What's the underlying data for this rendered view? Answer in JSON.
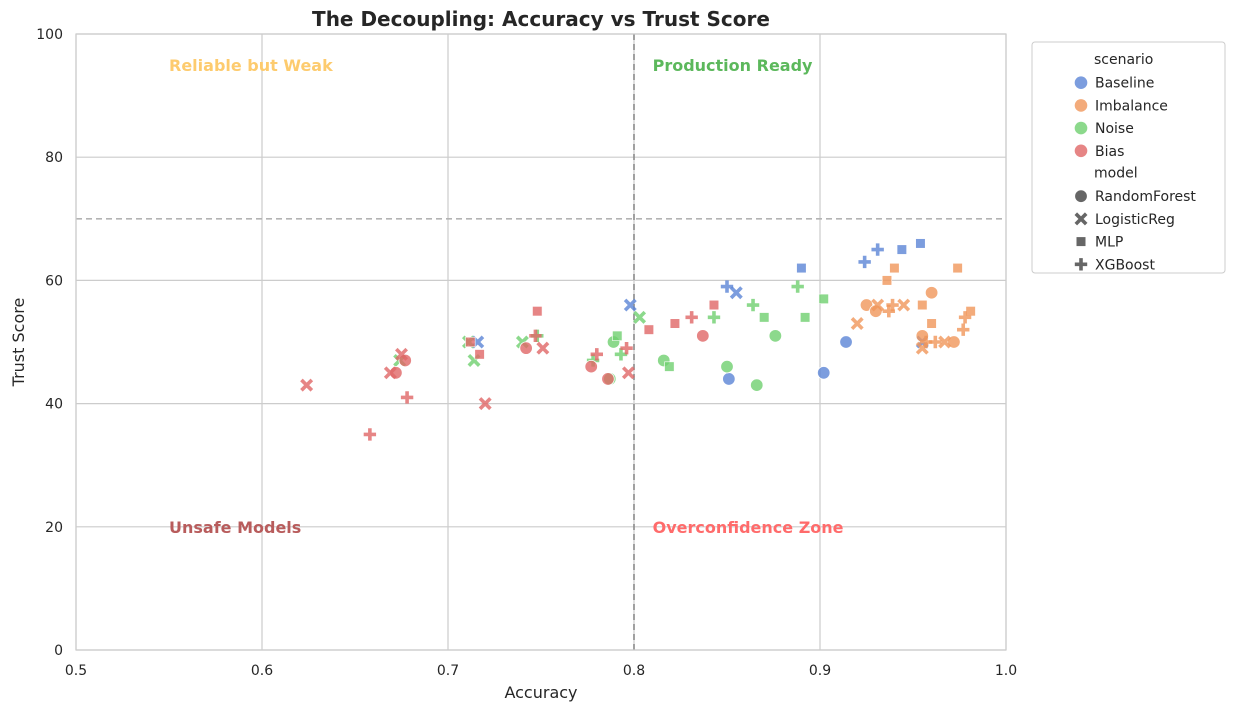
{
  "chart_data": {
    "type": "scatter",
    "title": "The Decoupling: Accuracy vs Trust Score",
    "xlabel": "Accuracy",
    "ylabel": "Trust Score",
    "xlim": [
      0.5,
      1.0
    ],
    "ylim": [
      0,
      100
    ],
    "x_ticks": [
      "0.5",
      "0.6",
      "0.7",
      "0.8",
      "0.9",
      "1.0"
    ],
    "y_ticks": [
      "0",
      "20",
      "40",
      "60",
      "80",
      "100"
    ],
    "grid": true,
    "reference_lines": {
      "vertical_x": 0.8,
      "horizontal_y": 70,
      "style": "dashed"
    },
    "zone_labels": [
      {
        "text": "Reliable but Weak",
        "x": 0.55,
        "y": 95,
        "color": "#fdcb6e"
      },
      {
        "text": "Production Ready",
        "x": 0.81,
        "y": 95,
        "color": "#5cb85c"
      },
      {
        "text": "Unsafe Models",
        "x": 0.55,
        "y": 20,
        "color": "#b85c5c"
      },
      {
        "text": "Overconfidence Zone",
        "x": 0.81,
        "y": 20,
        "color": "#ff6b6b"
      }
    ],
    "legend": {
      "placement": "outside-upper-right",
      "hue_title": "scenario",
      "hue_entries": [
        {
          "name": "Baseline",
          "color": "#5b84d6"
        },
        {
          "name": "Imbalance",
          "color": "#f0965a"
        },
        {
          "name": "Noise",
          "color": "#6fcf6f"
        },
        {
          "name": "Bias",
          "color": "#e06666"
        }
      ],
      "style_title": "model",
      "style_entries": [
        {
          "name": "RandomForest",
          "marker": "circle"
        },
        {
          "name": "LogisticReg",
          "marker": "x"
        },
        {
          "name": "MLP",
          "marker": "square"
        },
        {
          "name": "XGBoost",
          "marker": "plus"
        }
      ]
    },
    "series": [
      {
        "scenario": "Baseline",
        "model": "RandomForest",
        "points": [
          [
            0.851,
            44
          ],
          [
            0.902,
            45
          ],
          [
            0.914,
            50
          ]
        ]
      },
      {
        "scenario": "Baseline",
        "model": "LogisticReg",
        "points": [
          [
            0.716,
            50
          ],
          [
            0.798,
            56
          ],
          [
            0.855,
            58
          ],
          [
            0.955,
            50
          ]
        ]
      },
      {
        "scenario": "Baseline",
        "model": "MLP",
        "points": [
          [
            0.89,
            62
          ],
          [
            0.944,
            65
          ],
          [
            0.954,
            66
          ]
        ]
      },
      {
        "scenario": "Baseline",
        "model": "XGBoost",
        "points": [
          [
            0.85,
            59
          ],
          [
            0.924,
            63
          ],
          [
            0.931,
            65
          ]
        ]
      },
      {
        "scenario": "Imbalance",
        "model": "RandomForest",
        "points": [
          [
            0.925,
            56
          ],
          [
            0.93,
            55
          ],
          [
            0.955,
            51
          ],
          [
            0.96,
            58
          ],
          [
            0.972,
            50
          ]
        ]
      },
      {
        "scenario": "Imbalance",
        "model": "LogisticReg",
        "points": [
          [
            0.92,
            53
          ],
          [
            0.931,
            56
          ],
          [
            0.945,
            56
          ],
          [
            0.955,
            49
          ],
          [
            0.967,
            50
          ]
        ]
      },
      {
        "scenario": "Imbalance",
        "model": "MLP",
        "points": [
          [
            0.936,
            60
          ],
          [
            0.94,
            62
          ],
          [
            0.955,
            56
          ],
          [
            0.96,
            53
          ],
          [
            0.974,
            62
          ],
          [
            0.981,
            55
          ]
        ]
      },
      {
        "scenario": "Imbalance",
        "model": "XGBoost",
        "points": [
          [
            0.937,
            55
          ],
          [
            0.939,
            56
          ],
          [
            0.957,
            50
          ],
          [
            0.962,
            50
          ],
          [
            0.977,
            52
          ],
          [
            0.978,
            54
          ]
        ]
      },
      {
        "scenario": "Noise",
        "model": "RandomForest",
        "points": [
          [
            0.787,
            44
          ],
          [
            0.789,
            50
          ],
          [
            0.816,
            47
          ],
          [
            0.85,
            46
          ],
          [
            0.866,
            43
          ],
          [
            0.876,
            51
          ]
        ]
      },
      {
        "scenario": "Noise",
        "model": "LogisticReg",
        "points": [
          [
            0.674,
            47
          ],
          [
            0.711,
            50
          ],
          [
            0.714,
            47
          ],
          [
            0.74,
            50
          ],
          [
            0.803,
            54
          ]
        ]
      },
      {
        "scenario": "Noise",
        "model": "MLP",
        "points": [
          [
            0.791,
            51
          ],
          [
            0.819,
            46
          ],
          [
            0.87,
            54
          ],
          [
            0.892,
            54
          ],
          [
            0.902,
            57
          ]
        ]
      },
      {
        "scenario": "Noise",
        "model": "XGBoost",
        "points": [
          [
            0.748,
            51
          ],
          [
            0.778,
            47
          ],
          [
            0.793,
            48
          ],
          [
            0.843,
            54
          ],
          [
            0.864,
            56
          ],
          [
            0.888,
            59
          ]
        ]
      },
      {
        "scenario": "Bias",
        "model": "RandomForest",
        "points": [
          [
            0.672,
            45
          ],
          [
            0.677,
            47
          ],
          [
            0.742,
            49
          ],
          [
            0.777,
            46
          ],
          [
            0.786,
            44
          ],
          [
            0.837,
            51
          ]
        ]
      },
      {
        "scenario": "Bias",
        "model": "LogisticReg",
        "points": [
          [
            0.624,
            43
          ],
          [
            0.669,
            45
          ],
          [
            0.675,
            48
          ],
          [
            0.72,
            40
          ],
          [
            0.751,
            49
          ],
          [
            0.797,
            45
          ]
        ]
      },
      {
        "scenario": "Bias",
        "model": "MLP",
        "points": [
          [
            0.712,
            50
          ],
          [
            0.717,
            48
          ],
          [
            0.748,
            55
          ],
          [
            0.808,
            52
          ],
          [
            0.822,
            53
          ],
          [
            0.843,
            56
          ]
        ]
      },
      {
        "scenario": "Bias",
        "model": "XGBoost",
        "points": [
          [
            0.658,
            35
          ],
          [
            0.678,
            41
          ],
          [
            0.747,
            51
          ],
          [
            0.78,
            48
          ],
          [
            0.796,
            49
          ],
          [
            0.831,
            54
          ]
        ]
      }
    ]
  }
}
